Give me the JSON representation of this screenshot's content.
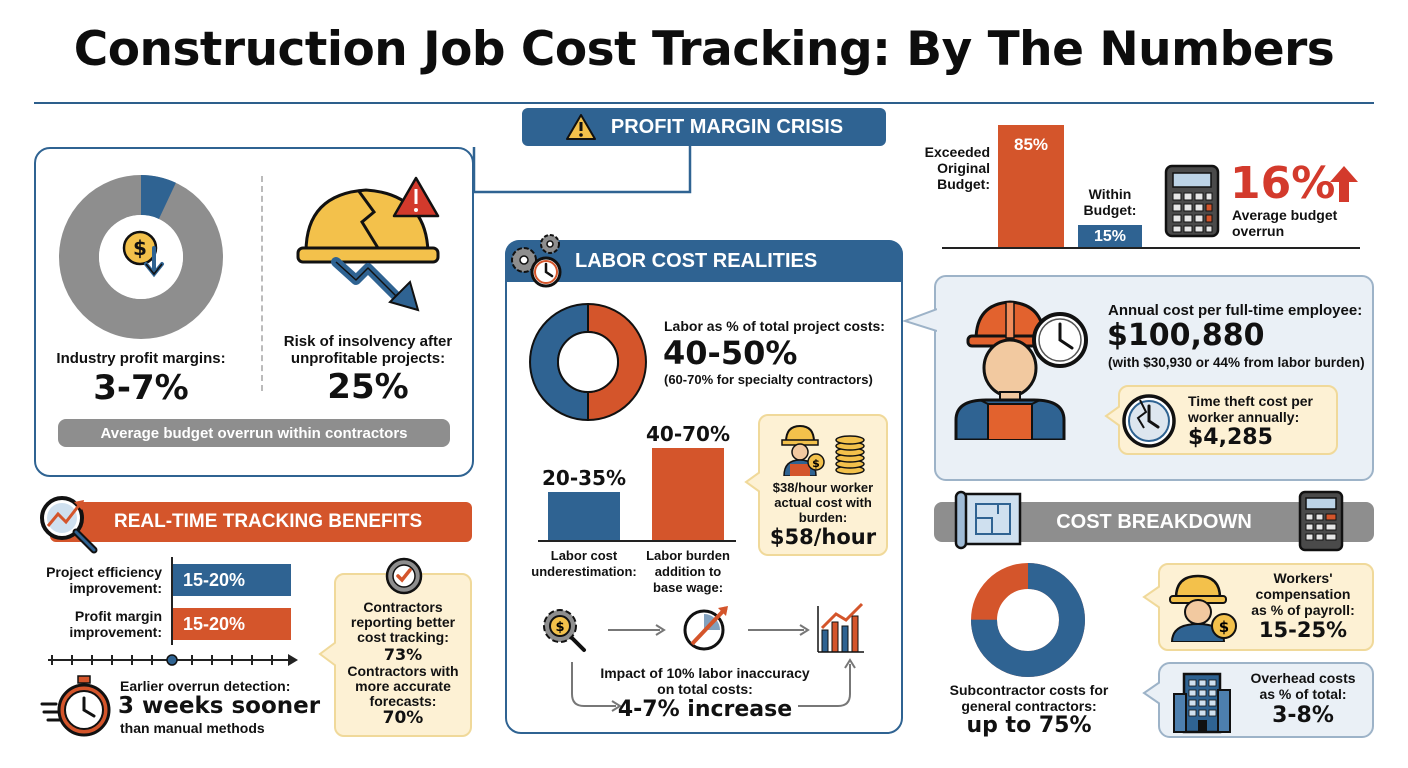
{
  "title": "Construction Job Cost Tracking: By The Numbers",
  "colors": {
    "blue": "#2f6392",
    "orange": "#d4552b",
    "gray": "#8e8e8e",
    "cream": "#fdf1d4",
    "red": "#d33a2c"
  },
  "profit": {
    "header": "PROFIT MARGIN CRISIS",
    "margins_label": "Industry profit margins:",
    "margins_value": "3-7%",
    "insolvency_label_1": "Risk of insolvency after",
    "insolvency_label_2": "unprofitable projects:",
    "insolvency_value": "25%",
    "footer_pill": "Average budget overrun within contractors",
    "donut_highlight_fraction": 0.07
  },
  "budget": {
    "exceeded_label_1": "Exceeded",
    "exceeded_label_2": "Original",
    "exceeded_label_3": "Budget:",
    "exceeded_value": "85%",
    "exceeded_pct": 85,
    "within_label_1": "Within",
    "within_label_2": "Budget:",
    "within_value": "15%",
    "within_pct": 15,
    "overrun_value": "16%",
    "overrun_label_1": "Average budget",
    "overrun_label_2": "overrun"
  },
  "labor": {
    "header": "LABOR COST REALITIES",
    "share_label": "Labor as % of total project costs:",
    "share_value": "40-50%",
    "share_note": "(60-70% for specialty contractors)",
    "bar1_value": "20-35%",
    "bar1_label_1": "Labor cost",
    "bar1_label_2": "underestimation:",
    "bar2_value": "40-70%",
    "bar2_label_1": "Labor burden",
    "bar2_label_2": "addition to",
    "bar2_label_3": "base wage:",
    "worker_note_1": "$38/hour worker",
    "worker_note_2": "actual cost with",
    "worker_note_3": "burden:",
    "worker_value": "$58/hour",
    "impact_label_1": "Impact of 10% labor inaccuracy",
    "impact_label_2": "on total costs:",
    "impact_value": "4-7% increase"
  },
  "employee": {
    "annual_label": "Annual cost per full-time employee:",
    "annual_value": "$100,880",
    "annual_note": "(with $30,930 or 44% from labor burden)",
    "theft_label_1": "Time theft cost per",
    "theft_label_2": "worker annually:",
    "theft_value": "$4,285"
  },
  "tracking": {
    "header": "REAL-TIME TRACKING BENEFITS",
    "eff_label_1": "Project efficiency",
    "eff_label_2": "improvement:",
    "eff_value": "15-20%",
    "profit_label_1": "Profit margin",
    "profit_label_2": "improvement:",
    "profit_value": "15-20%",
    "detect_label": "Earlier overrun detection:",
    "detect_value": "3 weeks sooner",
    "detect_note": "than manual methods",
    "note_1": "Contractors",
    "note_2": "reporting better",
    "note_3": "cost tracking:",
    "note_value_1": "73%",
    "note_4": "Contractors with",
    "note_5": "more accurate",
    "note_6": "forecasts:",
    "note_value_2": "70%"
  },
  "breakdown": {
    "header": "COST BREAKDOWN",
    "sub_label_1": "Subcontractor costs for",
    "sub_label_2": "general contractors:",
    "sub_value": "up to 75%",
    "sub_fraction": 0.75,
    "wc_label_1": "Workers'",
    "wc_label_2": "compensation",
    "wc_label_3": "as % of payroll:",
    "wc_value": "15-25%",
    "oh_label_1": "Overhead costs",
    "oh_label_2": "as % of total:",
    "oh_value": "3-8%"
  }
}
